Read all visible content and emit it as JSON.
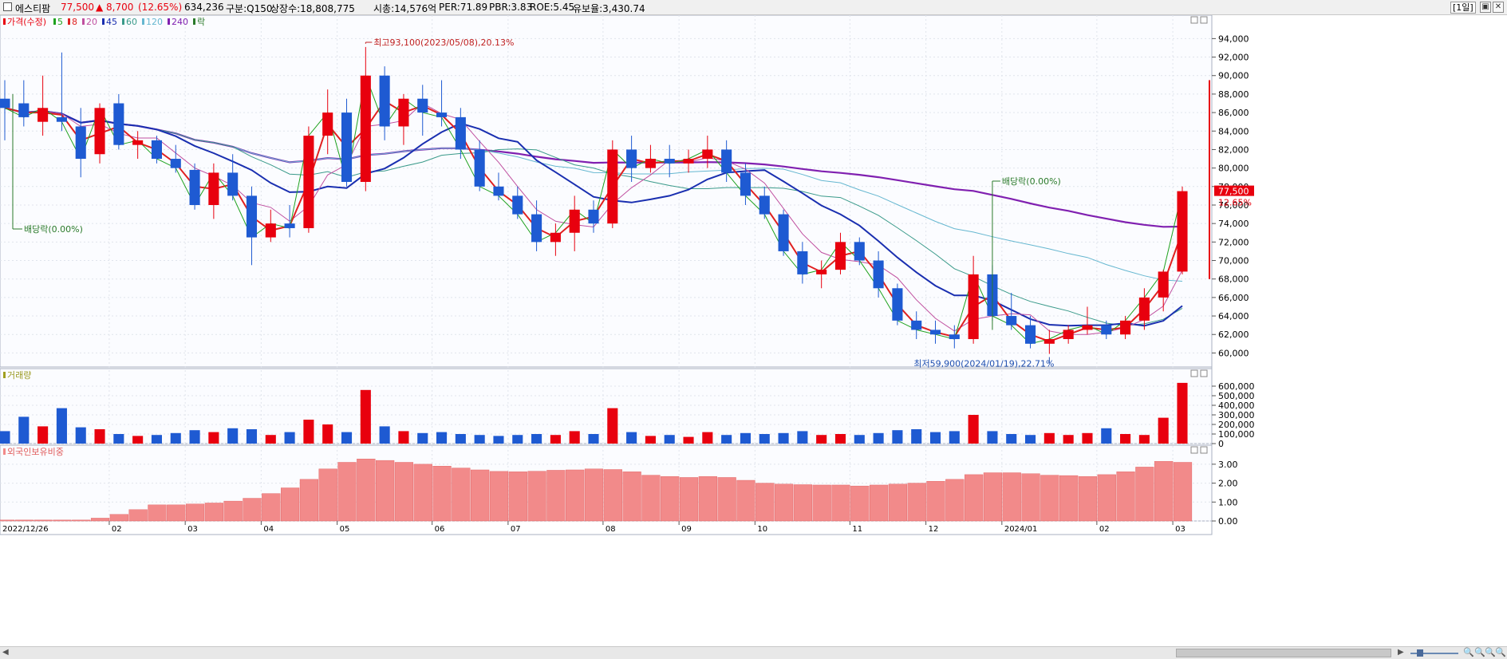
{
  "header": {
    "checkbox_state": "unchecked",
    "stock_name": "에스티팜",
    "price": "77,500",
    "change": "▲ 8,700",
    "change_pct": "(12.65%)",
    "volume": "634,236",
    "market": "구분:Q150",
    "shares": "상장수:18,808,775",
    "market_cap": "시총:14,576억",
    "per": "PER:71.89",
    "pbr": "PBR:3.83",
    "roe": "ROE:5.45",
    "float": "유보율:3,430.74",
    "period": "[1일]",
    "btn_restore": "▣",
    "btn_close": "✕"
  },
  "colors": {
    "up": "#e8000e",
    "down": "#1e5ad2",
    "ma5": "#1fa21f",
    "ma8": "#e02020",
    "ma20": "#c050a0",
    "ma45": "#1a2fb0",
    "ma60": "#3a9a8a",
    "ma120": "#66b7d0",
    "ma240": "#8020b0",
    "foreign": "#f28a8a",
    "annotation_high": "#c02020",
    "annotation_low": "#2050b0",
    "annotation_div": "#2a7a2a",
    "grid": "#e0e4ec"
  },
  "legend": {
    "items": [
      {
        "label": "가격(수정)",
        "color": "#e8000e"
      },
      {
        "label": "5",
        "color": "#1fa21f"
      },
      {
        "label": "8",
        "color": "#e02020"
      },
      {
        "label": "20",
        "color": "#c050a0"
      },
      {
        "label": "45",
        "color": "#1a2fb0"
      },
      {
        "label": "60",
        "color": "#3a9a8a"
      },
      {
        "label": "120",
        "color": "#66b7d0"
      },
      {
        "label": "240",
        "color": "#8020b0"
      },
      {
        "label": "락",
        "color": "#2a7a2a"
      }
    ]
  },
  "panels": {
    "volume_title": "거래량",
    "foreign_title": "외국인보유비중"
  },
  "annotations": {
    "high": "최고93,100(2023/05/08),20.13%",
    "low": "최저59,900(2024/01/19),22.71%",
    "div1": "배당락(0.00%)",
    "div2": "배당락(0.00%)"
  },
  "last_price_labels": {
    "price": "77,500",
    "pct": "12.65%"
  },
  "chart_data": {
    "type": "candlestick",
    "title": "에스티팜",
    "x_start": "2022-12-26",
    "x_end": "2024-03-05",
    "ohlc": [
      [
        "2022-12-26",
        87500,
        89500,
        83000,
        86500
      ],
      [
        "2023-01-02",
        87000,
        89500,
        84500,
        85500
      ],
      [
        "2023-01-09",
        85000,
        90000,
        83500,
        86500
      ],
      [
        "2023-01-16",
        85500,
        92500,
        84000,
        85000
      ],
      [
        "2023-01-23",
        84500,
        86500,
        79000,
        81000
      ],
      [
        "2023-01-30",
        81500,
        87000,
        80500,
        86500
      ],
      [
        "2023-02-06",
        87000,
        88000,
        82000,
        82500
      ],
      [
        "2023-02-13",
        82500,
        84000,
        81000,
        83000
      ],
      [
        "2023-02-20",
        83000,
        83500,
        80500,
        81000
      ],
      [
        "2023-02-27",
        81000,
        82500,
        79500,
        80000
      ],
      [
        "2023-03-06",
        79800,
        80500,
        75500,
        76000
      ],
      [
        "2023-03-13",
        76000,
        80500,
        74500,
        79500
      ],
      [
        "2023-03-20",
        79500,
        81500,
        76500,
        77000
      ],
      [
        "2023-03-27",
        77000,
        78000,
        69500,
        72500
      ],
      [
        "2023-04-03",
        72500,
        75500,
        72000,
        74000
      ],
      [
        "2023-04-10",
        74000,
        76000,
        72500,
        73500
      ],
      [
        "2023-04-17",
        73500,
        84500,
        73000,
        83500
      ],
      [
        "2023-04-24",
        83500,
        88500,
        81500,
        86000
      ],
      [
        "2023-05-01",
        86000,
        87500,
        78000,
        78500
      ],
      [
        "2023-05-08",
        78500,
        93100,
        77500,
        90000
      ],
      [
        "2023-05-15",
        90000,
        91000,
        83000,
        84500
      ],
      [
        "2023-05-22",
        84500,
        88000,
        82500,
        87500
      ],
      [
        "2023-05-29",
        87500,
        89000,
        83500,
        86000
      ],
      [
        "2023-06-05",
        86000,
        89500,
        84500,
        85500
      ],
      [
        "2023-06-12",
        85500,
        86500,
        81000,
        82000
      ],
      [
        "2023-06-19",
        82000,
        83000,
        77500,
        78000
      ],
      [
        "2023-06-26",
        78000,
        79500,
        76500,
        77000
      ],
      [
        "2023-07-03",
        77000,
        78000,
        74500,
        75000
      ],
      [
        "2023-07-10",
        75000,
        76500,
        71000,
        72000
      ],
      [
        "2023-07-17",
        72000,
        74000,
        70500,
        73000
      ],
      [
        "2023-07-24",
        73000,
        77000,
        71000,
        75500
      ],
      [
        "2023-07-31",
        75500,
        76500,
        73000,
        74000
      ],
      [
        "2023-08-07",
        74000,
        83000,
        73500,
        82000
      ],
      [
        "2023-08-14",
        82000,
        83500,
        78500,
        80000
      ],
      [
        "2023-08-21",
        80000,
        82500,
        79500,
        81000
      ],
      [
        "2023-08-28",
        81000,
        82500,
        79000,
        80500
      ],
      [
        "2023-09-04",
        80500,
        82000,
        79500,
        81000
      ],
      [
        "2023-09-11",
        81000,
        83500,
        80000,
        82000
      ],
      [
        "2023-09-18",
        82000,
        83000,
        78500,
        79500
      ],
      [
        "2023-09-25",
        79500,
        80500,
        76000,
        77000
      ],
      [
        "2023-10-02",
        77000,
        78000,
        74500,
        75000
      ],
      [
        "2023-10-09",
        75000,
        75500,
        70500,
        71000
      ],
      [
        "2023-10-16",
        71000,
        72000,
        67500,
        68500
      ],
      [
        "2023-10-23",
        68500,
        70000,
        67000,
        69000
      ],
      [
        "2023-10-30",
        69000,
        73000,
        68500,
        72000
      ],
      [
        "2023-11-06",
        72000,
        72500,
        69500,
        70000
      ],
      [
        "2023-11-13",
        70000,
        71000,
        66000,
        67000
      ],
      [
        "2023-11-20",
        67000,
        67500,
        63000,
        63500
      ],
      [
        "2023-11-27",
        63500,
        64500,
        61500,
        62500
      ],
      [
        "2023-12-04",
        62500,
        63500,
        61000,
        62000
      ],
      [
        "2023-12-11",
        62000,
        63000,
        60500,
        61500
      ],
      [
        "2023-12-18",
        61500,
        70500,
        61000,
        68500
      ],
      [
        "2023-12-25",
        68500,
        69500,
        63500,
        64000
      ],
      [
        "2024-01-01",
        64000,
        66500,
        62500,
        63000
      ],
      [
        "2024-01-08",
        63000,
        64000,
        60500,
        61000
      ],
      [
        "2024-01-15",
        61000,
        62500,
        59900,
        61500
      ],
      [
        "2024-01-22",
        61500,
        63000,
        61000,
        62500
      ],
      [
        "2024-01-29",
        62500,
        65000,
        62000,
        63000
      ],
      [
        "2024-02-05",
        63000,
        63500,
        61500,
        62000
      ],
      [
        "2024-02-12",
        62000,
        64000,
        61500,
        63500
      ],
      [
        "2024-02-19",
        63500,
        67000,
        62500,
        66000
      ],
      [
        "2024-02-26",
        66000,
        69000,
        64500,
        68800
      ],
      [
        "2024-03-04",
        68800,
        78000,
        68500,
        77500
      ]
    ],
    "volume": [
      [
        "2022-12-26",
        130000
      ],
      [
        "2023-01-02",
        280000
      ],
      [
        "2023-01-09",
        180000
      ],
      [
        "2023-01-16",
        370000
      ],
      [
        "2023-01-23",
        170000
      ],
      [
        "2023-01-30",
        150000
      ],
      [
        "2023-02-06",
        100000
      ],
      [
        "2023-02-13",
        80000
      ],
      [
        "2023-02-20",
        90000
      ],
      [
        "2023-02-27",
        110000
      ],
      [
        "2023-03-06",
        140000
      ],
      [
        "2023-03-13",
        120000
      ],
      [
        "2023-03-20",
        160000
      ],
      [
        "2023-03-27",
        150000
      ],
      [
        "2023-04-03",
        90000
      ],
      [
        "2023-04-10",
        120000
      ],
      [
        "2023-04-17",
        250000
      ],
      [
        "2023-04-24",
        200000
      ],
      [
        "2023-05-01",
        120000
      ],
      [
        "2023-05-08",
        560000
      ],
      [
        "2023-05-15",
        180000
      ],
      [
        "2023-05-22",
        130000
      ],
      [
        "2023-05-29",
        110000
      ],
      [
        "2023-06-05",
        120000
      ],
      [
        "2023-06-12",
        100000
      ],
      [
        "2023-06-19",
        90000
      ],
      [
        "2023-06-26",
        80000
      ],
      [
        "2023-07-03",
        90000
      ],
      [
        "2023-07-10",
        100000
      ],
      [
        "2023-07-17",
        90000
      ],
      [
        "2023-07-24",
        130000
      ],
      [
        "2023-07-31",
        100000
      ],
      [
        "2023-08-07",
        370000
      ],
      [
        "2023-08-14",
        120000
      ],
      [
        "2023-08-21",
        80000
      ],
      [
        "2023-08-28",
        90000
      ],
      [
        "2023-09-04",
        70000
      ],
      [
        "2023-09-11",
        120000
      ],
      [
        "2023-09-18",
        90000
      ],
      [
        "2023-09-25",
        110000
      ],
      [
        "2023-10-02",
        100000
      ],
      [
        "2023-10-09",
        110000
      ],
      [
        "2023-10-16",
        130000
      ],
      [
        "2023-10-23",
        90000
      ],
      [
        "2023-10-30",
        100000
      ],
      [
        "2023-11-06",
        90000
      ],
      [
        "2023-11-13",
        110000
      ],
      [
        "2023-11-20",
        140000
      ],
      [
        "2023-11-27",
        150000
      ],
      [
        "2023-12-04",
        120000
      ],
      [
        "2023-12-11",
        130000
      ],
      [
        "2023-12-18",
        300000
      ],
      [
        "2023-12-25",
        130000
      ],
      [
        "2024-01-01",
        100000
      ],
      [
        "2024-01-08",
        90000
      ],
      [
        "2024-01-15",
        110000
      ],
      [
        "2024-01-22",
        90000
      ],
      [
        "2024-01-29",
        110000
      ],
      [
        "2024-02-05",
        160000
      ],
      [
        "2024-02-12",
        100000
      ],
      [
        "2024-02-19",
        90000
      ],
      [
        "2024-02-26",
        270000
      ],
      [
        "2024-03-04",
        634236
      ]
    ],
    "foreign_ratio": [
      [
        "2022-12-26",
        0.05
      ],
      [
        "2023-01-02",
        0.05
      ],
      [
        "2023-01-09",
        0.05
      ],
      [
        "2023-01-16",
        0.05
      ],
      [
        "2023-01-23",
        0.05
      ],
      [
        "2023-01-30",
        0.15
      ],
      [
        "2023-02-06",
        0.35
      ],
      [
        "2023-02-13",
        0.6
      ],
      [
        "2023-02-20",
        0.85
      ],
      [
        "2023-02-27",
        0.85
      ],
      [
        "2023-03-06",
        0.9
      ],
      [
        "2023-03-13",
        0.95
      ],
      [
        "2023-03-20",
        1.05
      ],
      [
        "2023-03-27",
        1.2
      ],
      [
        "2023-04-03",
        1.45
      ],
      [
        "2023-04-10",
        1.75
      ],
      [
        "2023-04-17",
        2.2
      ],
      [
        "2023-04-24",
        2.75
      ],
      [
        "2023-05-01",
        3.1
      ],
      [
        "2023-05-08",
        3.28
      ],
      [
        "2023-05-15",
        3.2
      ],
      [
        "2023-05-22",
        3.1
      ],
      [
        "2023-05-29",
        3.0
      ],
      [
        "2023-06-05",
        2.9
      ],
      [
        "2023-06-12",
        2.8
      ],
      [
        "2023-06-19",
        2.7
      ],
      [
        "2023-06-26",
        2.62
      ],
      [
        "2023-07-03",
        2.6
      ],
      [
        "2023-07-10",
        2.63
      ],
      [
        "2023-07-17",
        2.68
      ],
      [
        "2023-07-24",
        2.7
      ],
      [
        "2023-07-31",
        2.75
      ],
      [
        "2023-08-07",
        2.72
      ],
      [
        "2023-08-14",
        2.6
      ],
      [
        "2023-08-21",
        2.42
      ],
      [
        "2023-08-28",
        2.35
      ],
      [
        "2023-09-04",
        2.3
      ],
      [
        "2023-09-11",
        2.35
      ],
      [
        "2023-09-18",
        2.3
      ],
      [
        "2023-09-25",
        2.15
      ],
      [
        "2023-10-02",
        2.0
      ],
      [
        "2023-10-09",
        1.95
      ],
      [
        "2023-10-16",
        1.92
      ],
      [
        "2023-10-23",
        1.9
      ],
      [
        "2023-10-30",
        1.9
      ],
      [
        "2023-11-06",
        1.85
      ],
      [
        "2023-11-13",
        1.9
      ],
      [
        "2023-11-20",
        1.95
      ],
      [
        "2023-11-27",
        2.0
      ],
      [
        "2023-12-04",
        2.1
      ],
      [
        "2023-12-11",
        2.2
      ],
      [
        "2023-12-18",
        2.45
      ],
      [
        "2023-12-25",
        2.55
      ],
      [
        "2024-01-01",
        2.55
      ],
      [
        "2024-01-08",
        2.5
      ],
      [
        "2024-01-15",
        2.42
      ],
      [
        "2024-01-22",
        2.4
      ],
      [
        "2024-01-29",
        2.35
      ],
      [
        "2024-02-05",
        2.45
      ],
      [
        "2024-02-12",
        2.6
      ],
      [
        "2024-02-19",
        2.85
      ],
      [
        "2024-02-26",
        3.15
      ],
      [
        "2024-03-04",
        3.1
      ]
    ],
    "price_axis": {
      "min": 59000,
      "max": 95500,
      "ticks": [
        "94,000",
        "92,000",
        "90,000",
        "88,000",
        "86,000",
        "84,000",
        "82,000",
        "80,000",
        "78,000",
        "76,000",
        "74,000",
        "72,000",
        "70,000",
        "68,000",
        "66,000",
        "64,000",
        "62,000",
        "60,000"
      ]
    },
    "volume_axis": {
      "min": 0,
      "max": 650000,
      "ticks": [
        "600,000",
        "500,000",
        "400,000",
        "300,000",
        "200,000",
        "100,000",
        "0"
      ]
    },
    "foreign_axis": {
      "min": 0,
      "max": 3.5,
      "ticks": [
        "3.00",
        "2.00",
        "1.00",
        "0.00"
      ]
    },
    "x_labels": [
      "2022/12/26",
      "02",
      "03",
      "04",
      "05",
      "06",
      "07",
      "08",
      "09",
      "10",
      "11",
      "12",
      "2024/01",
      "02",
      "03"
    ],
    "grid": true
  },
  "scrollbar": {
    "left_arrow": "◀",
    "right_arrow": "▶",
    "zoom_icons": [
      "🔍",
      "🔍",
      "🔍",
      "🔍"
    ]
  }
}
